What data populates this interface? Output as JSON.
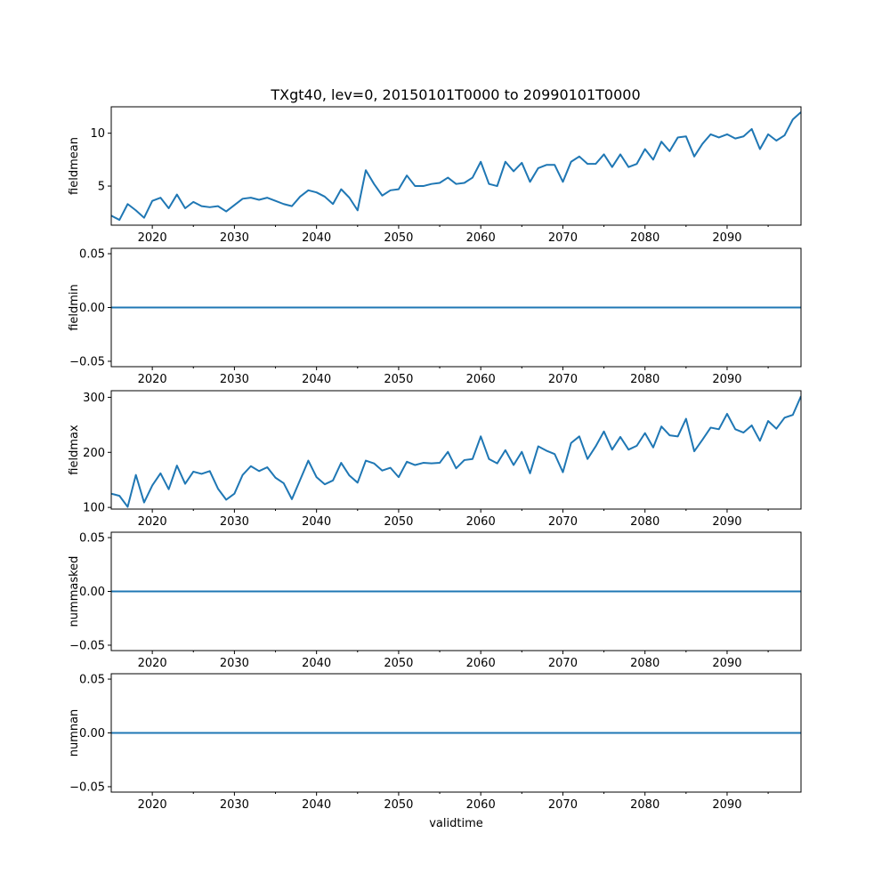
{
  "title": "TXgt40, lev=0, 20150101T0000 to 20990101T0000",
  "series_color": "#1f77b4",
  "chart_data": [
    {
      "type": "line",
      "ylabel": "fieldmean",
      "xlim": [
        2015,
        2099
      ],
      "ylim": [
        1.3,
        12.5
      ],
      "yticks": [
        5,
        10
      ],
      "ytick_labels": [
        "5",
        "10"
      ],
      "x": [
        2015,
        2016,
        2017,
        2018,
        2019,
        2020,
        2021,
        2022,
        2023,
        2024,
        2025,
        2026,
        2027,
        2028,
        2029,
        2030,
        2031,
        2032,
        2033,
        2034,
        2035,
        2036,
        2037,
        2038,
        2039,
        2040,
        2041,
        2042,
        2043,
        2044,
        2045,
        2046,
        2047,
        2048,
        2049,
        2050,
        2051,
        2052,
        2053,
        2054,
        2055,
        2056,
        2057,
        2058,
        2059,
        2060,
        2061,
        2062,
        2063,
        2064,
        2065,
        2066,
        2067,
        2068,
        2069,
        2070,
        2071,
        2072,
        2073,
        2074,
        2075,
        2076,
        2077,
        2078,
        2079,
        2080,
        2081,
        2082,
        2083,
        2084,
        2085,
        2086,
        2087,
        2088,
        2089,
        2090,
        2091,
        2092,
        2093,
        2094,
        2095,
        2096,
        2097,
        2098,
        2099
      ],
      "values": [
        2.2,
        1.8,
        3.3,
        2.7,
        2.0,
        3.6,
        3.9,
        2.9,
        4.2,
        2.9,
        3.5,
        3.1,
        3.0,
        3.1,
        2.6,
        3.2,
        3.8,
        3.9,
        3.7,
        3.9,
        3.6,
        3.3,
        3.1,
        4.0,
        4.6,
        4.4,
        4.0,
        3.3,
        4.7,
        3.9,
        2.7,
        6.5,
        5.2,
        4.1,
        4.6,
        4.7,
        6.0,
        5.0,
        5.0,
        5.2,
        5.3,
        5.8,
        5.2,
        5.3,
        5.8,
        7.3,
        5.2,
        5.0,
        7.3,
        6.4,
        7.2,
        5.4,
        6.7,
        7.0,
        7.0,
        5.4,
        7.3,
        7.8,
        7.1,
        7.1,
        8.0,
        6.8,
        8.0,
        6.8,
        7.1,
        8.5,
        7.5,
        9.2,
        8.3,
        9.6,
        9.7,
        7.8,
        9.0,
        9.9,
        9.6,
        9.9,
        9.5,
        9.7,
        10.4,
        8.5,
        9.9,
        9.3,
        9.8,
        11.3,
        12.0
      ]
    },
    {
      "type": "line",
      "ylabel": "fieldmin",
      "xlim": [
        2015,
        2099
      ],
      "ylim": [
        -0.055,
        0.055
      ],
      "yticks": [
        -0.05,
        0,
        0.05
      ],
      "ytick_labels": [
        "−0.05",
        "0.00",
        "0.05"
      ],
      "x": [
        2015,
        2099
      ],
      "values": [
        0,
        0
      ]
    },
    {
      "type": "line",
      "ylabel": "fieldmax",
      "xlim": [
        2015,
        2099
      ],
      "ylim": [
        97,
        312
      ],
      "yticks": [
        100,
        200,
        300
      ],
      "ytick_labels": [
        "100",
        "200",
        "300"
      ],
      "x": [
        2015,
        2016,
        2017,
        2018,
        2019,
        2020,
        2021,
        2022,
        2023,
        2024,
        2025,
        2026,
        2027,
        2028,
        2029,
        2030,
        2031,
        2032,
        2033,
        2034,
        2035,
        2036,
        2037,
        2038,
        2039,
        2040,
        2041,
        2042,
        2043,
        2044,
        2045,
        2046,
        2047,
        2048,
        2049,
        2050,
        2051,
        2052,
        2053,
        2054,
        2055,
        2056,
        2057,
        2058,
        2059,
        2060,
        2061,
        2062,
        2063,
        2064,
        2065,
        2066,
        2067,
        2068,
        2069,
        2070,
        2071,
        2072,
        2073,
        2074,
        2075,
        2076,
        2077,
        2078,
        2079,
        2080,
        2081,
        2082,
        2083,
        2084,
        2085,
        2086,
        2087,
        2088,
        2089,
        2090,
        2091,
        2092,
        2093,
        2094,
        2095,
        2096,
        2097,
        2098,
        2099
      ],
      "values": [
        125,
        121,
        101,
        159,
        109,
        140,
        162,
        133,
        176,
        143,
        165,
        161,
        166,
        134,
        114,
        125,
        159,
        175,
        166,
        173,
        154,
        144,
        115,
        150,
        185,
        155,
        142,
        149,
        181,
        158,
        145,
        185,
        180,
        167,
        172,
        155,
        183,
        177,
        181,
        180,
        181,
        201,
        171,
        186,
        188,
        229,
        188,
        180,
        204,
        177,
        201,
        162,
        211,
        203,
        197,
        164,
        217,
        229,
        188,
        211,
        238,
        205,
        228,
        205,
        212,
        235,
        209,
        247,
        231,
        229,
        261,
        202,
        223,
        245,
        242,
        270,
        242,
        236,
        249,
        221,
        257,
        243,
        263,
        268,
        302
      ]
    },
    {
      "type": "line",
      "ylabel": "nummasked",
      "xlim": [
        2015,
        2099
      ],
      "ylim": [
        -0.055,
        0.055
      ],
      "yticks": [
        -0.05,
        0,
        0.05
      ],
      "ytick_labels": [
        "−0.05",
        "0.00",
        "0.05"
      ],
      "x": [
        2015,
        2099
      ],
      "values": [
        0,
        0
      ]
    },
    {
      "type": "line",
      "ylabel": "numnan",
      "xlabel": "validtime",
      "xlim": [
        2015,
        2099
      ],
      "ylim": [
        -0.055,
        0.055
      ],
      "yticks": [
        -0.05,
        0,
        0.05
      ],
      "ytick_labels": [
        "−0.05",
        "0.00",
        "0.05"
      ],
      "x": [
        2015,
        2099
      ],
      "values": [
        0,
        0
      ]
    }
  ],
  "xticks": [
    2020,
    2030,
    2040,
    2050,
    2060,
    2070,
    2080,
    2090
  ],
  "xtick_labels": [
    "2020",
    "2030",
    "2040",
    "2050",
    "2060",
    "2070",
    "2080",
    "2090"
  ],
  "minor_xticks": [
    2025,
    2035,
    2045,
    2055,
    2065,
    2075,
    2085,
    2095
  ]
}
